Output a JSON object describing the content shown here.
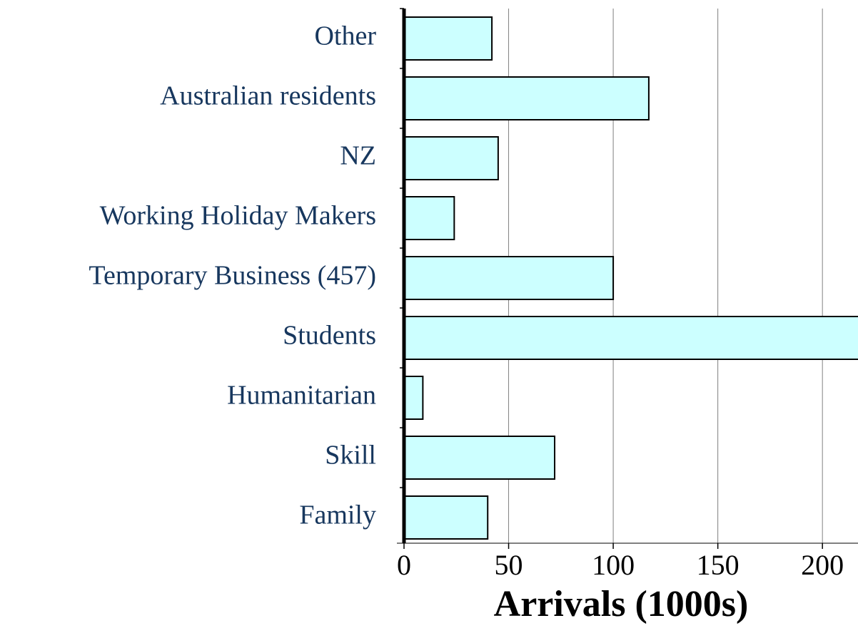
{
  "chart_data": {
    "type": "bar",
    "orientation": "horizontal",
    "x_label": "Arrivals (1000s)",
    "categories": [
      "Other",
      "Australian residents",
      "NZ",
      "Working Holiday Makers",
      "Temporary Business (457)",
      "Students",
      "Humanitarian",
      "Skill",
      "Family"
    ],
    "values": [
      42,
      117,
      45,
      24,
      100,
      220,
      9,
      72,
      40
    ],
    "color": "#ccffff",
    "xlim": [
      0,
      217
    ],
    "xticks": [
      0,
      50,
      100,
      150,
      200
    ],
    "grid": true
  }
}
